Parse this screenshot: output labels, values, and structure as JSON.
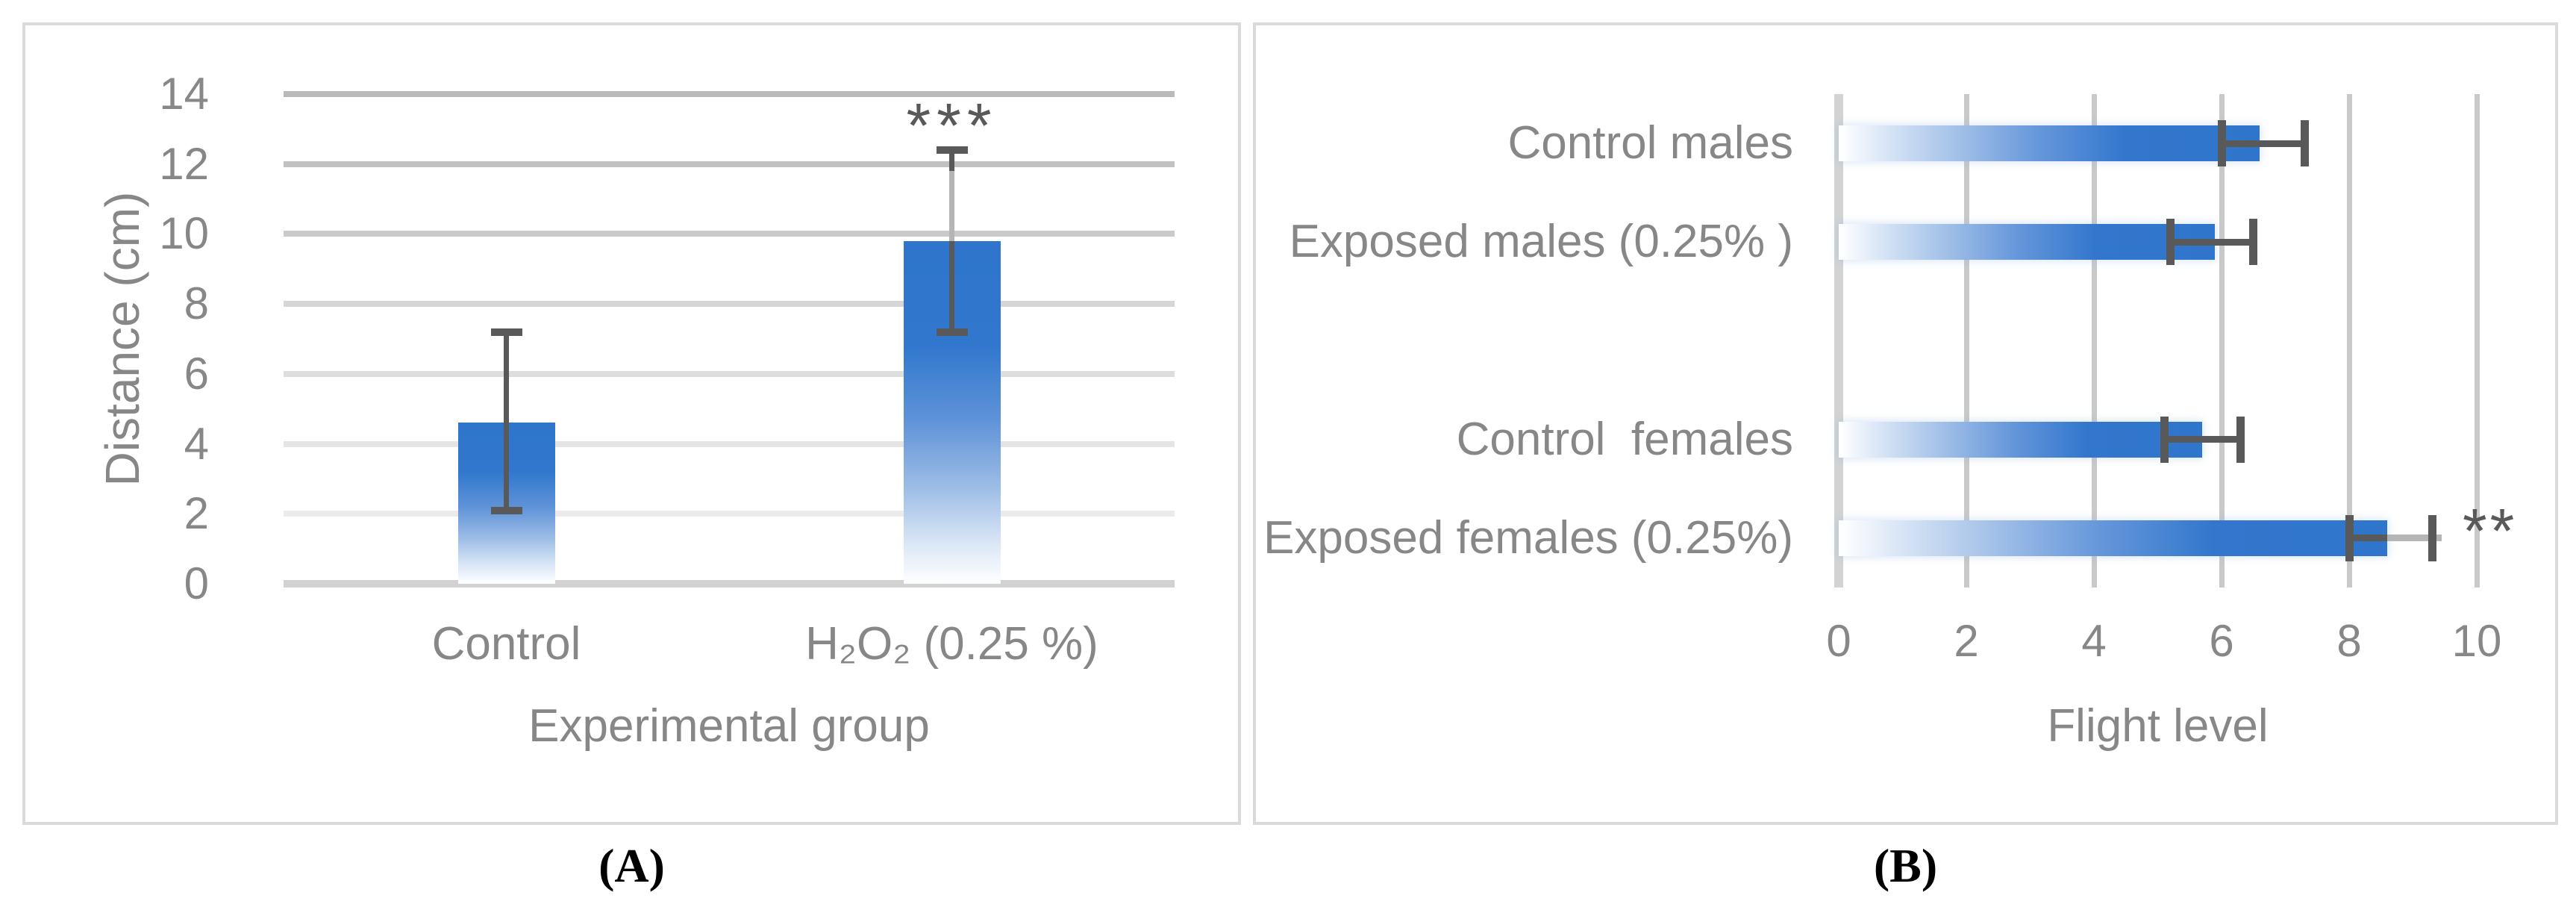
{
  "figure": {
    "caption_a": "(A)",
    "caption_b": "(B)"
  },
  "colors": {
    "bar_blue": "#2E75CB",
    "error_bar_dark": "#595959",
    "error_bar_light": "#B5B5B5",
    "label_gray": "#878787",
    "panel_border": "#DADADA",
    "gridline_gray": "#C9C9C9"
  },
  "chart_data": [
    {
      "id": "panel-a",
      "type": "bar",
      "orientation": "vertical",
      "xlabel": "Experimental group",
      "ylabel": "Distance (cm)",
      "ylim": [
        0,
        14
      ],
      "yticks": [
        14,
        12,
        10,
        8,
        6,
        4,
        2,
        0
      ],
      "grid": true,
      "legend": "none",
      "bars": [
        {
          "label": "Control",
          "value": 4.6,
          "err_low": 2.1,
          "err_high": 7.2
        },
        {
          "label": "H₂O₂ (0.25 %)",
          "value": 9.8,
          "err_low": 7.2,
          "err_high": 12.4,
          "err_light": [
            9.8,
            11.8
          ],
          "sig": "***"
        }
      ]
    },
    {
      "id": "panel-b",
      "type": "bar",
      "orientation": "horizontal",
      "xlabel": "Flight level",
      "ylabel": "",
      "xlim": [
        0,
        10
      ],
      "xticks": [
        0,
        2,
        4,
        6,
        8,
        10
      ],
      "grid": true,
      "legend": "none",
      "rows_total": 5,
      "bars": [
        {
          "label": "Control males",
          "row": 0,
          "value": 6.6,
          "err_low": 6.0,
          "err_high": 7.3
        },
        {
          "label": "Exposed males (0.25% )",
          "row": 1,
          "value": 5.9,
          "err_low": 5.2,
          "err_high": 6.5
        },
        {
          "label": "Control  females",
          "row": 3,
          "value": 5.7,
          "err_low": 5.1,
          "err_high": 6.3
        },
        {
          "label": "Exposed females (0.25%)",
          "row": 4,
          "value": 8.6,
          "err_low": 8.0,
          "err_high": 9.3,
          "err_light": [
            8.6,
            9.45
          ],
          "sig": "**"
        }
      ]
    }
  ]
}
